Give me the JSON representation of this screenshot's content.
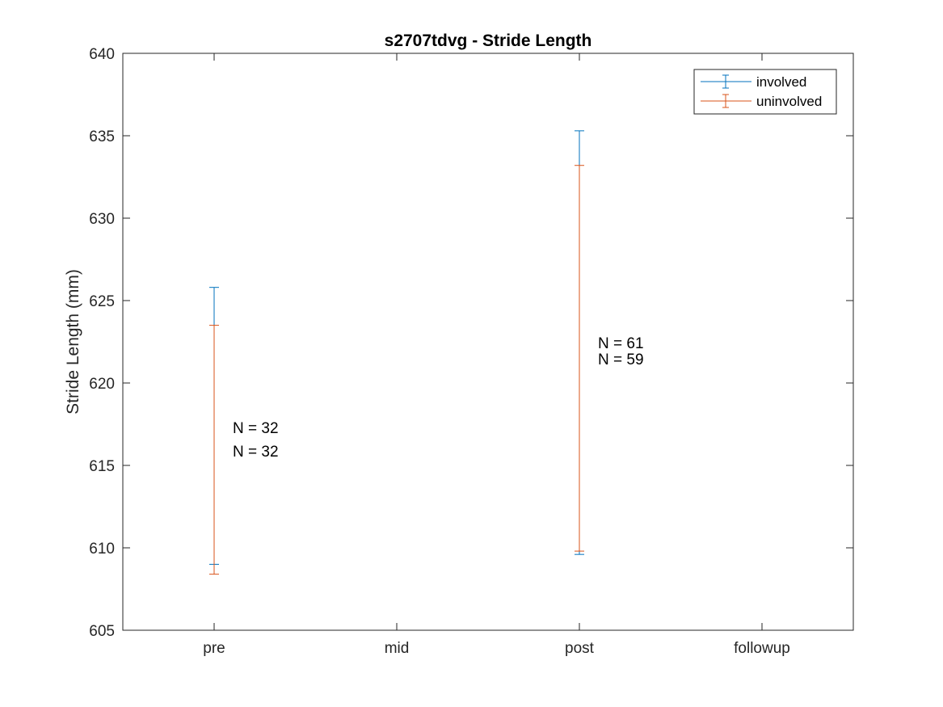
{
  "chart_data": {
    "type": "errorbar",
    "title": "s2707tdvg - Stride Length",
    "xlabel": "",
    "ylabel": "Stride Length (mm)",
    "categories": [
      "pre",
      "mid",
      "post",
      "followup"
    ],
    "ylim": [
      605,
      640
    ],
    "yticks": [
      605,
      610,
      615,
      620,
      625,
      630,
      635,
      640
    ],
    "grid": false,
    "legend_position": "top-right",
    "series": [
      {
        "name": "involved",
        "color": "#0072BD",
        "bars": [
          {
            "category": "pre",
            "low": 609.0,
            "high": 625.8
          },
          {
            "category": "post",
            "low": 609.6,
            "high": 635.3
          }
        ]
      },
      {
        "name": "uninvolved",
        "color": "#D95319",
        "bars": [
          {
            "category": "pre",
            "low": 608.4,
            "high": 623.5
          },
          {
            "category": "post",
            "low": 609.8,
            "high": 633.2
          }
        ]
      }
    ],
    "annotations": [
      {
        "category": "pre",
        "lines": [
          "N = 32",
          "N = 32"
        ]
      },
      {
        "category": "post",
        "lines": [
          "N = 61",
          "N = 59"
        ]
      }
    ]
  }
}
